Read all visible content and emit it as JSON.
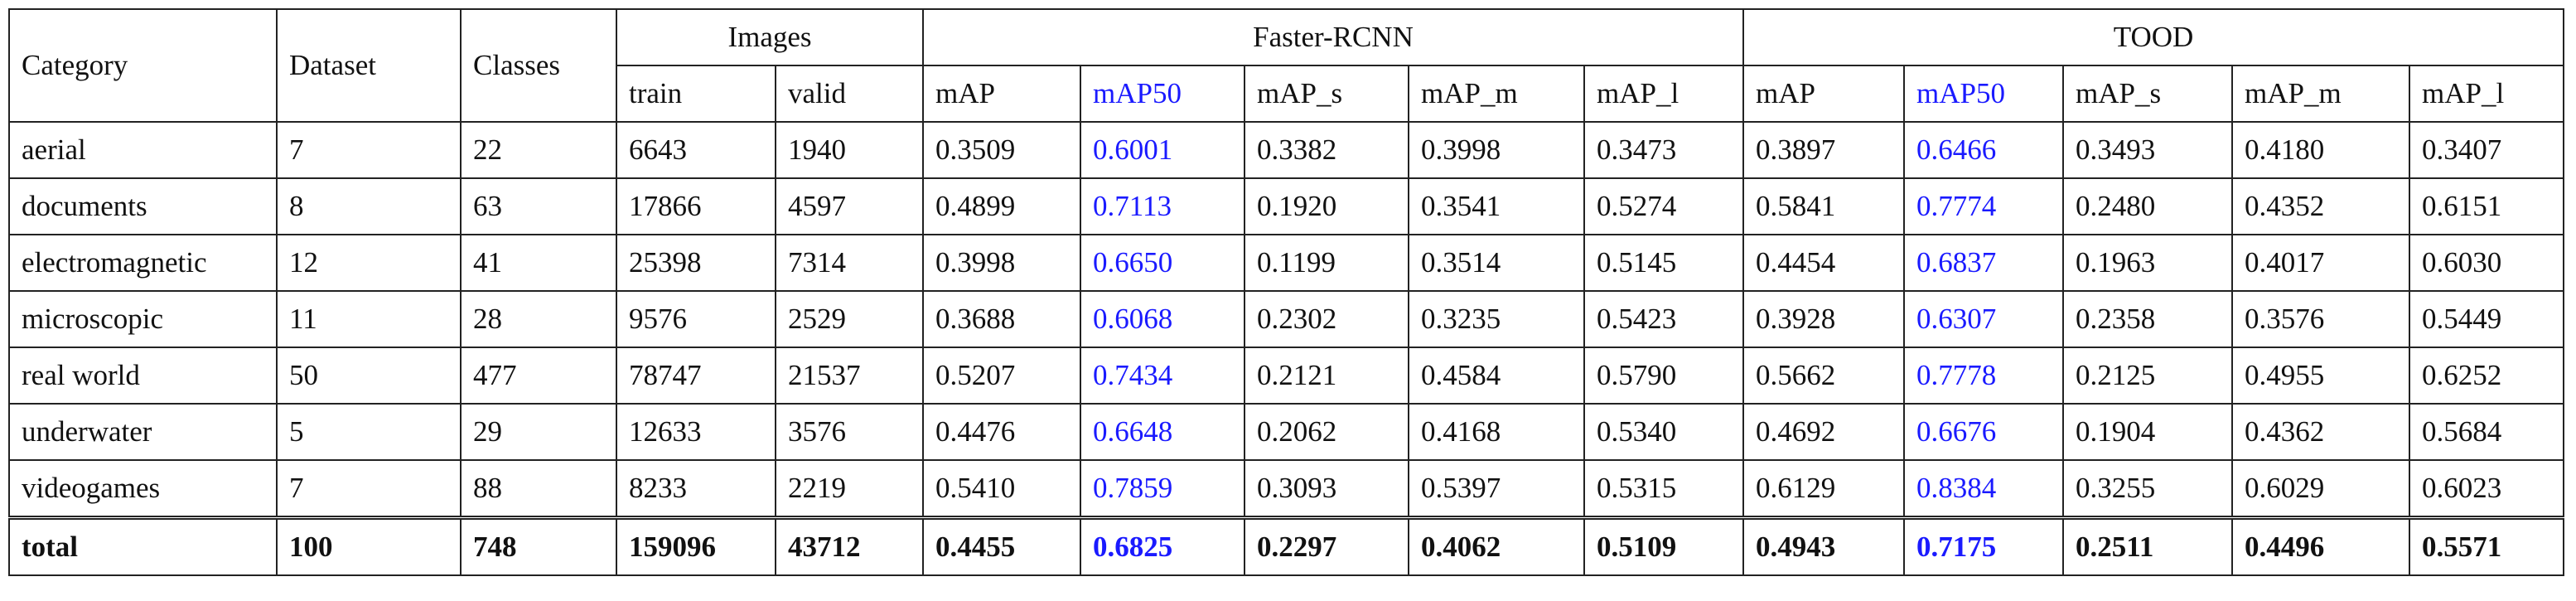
{
  "table": {
    "headers": {
      "category": "Category",
      "dataset": "Dataset",
      "classes": "Classes",
      "images": "Images",
      "train": "train",
      "valid": "valid",
      "groups": [
        "Faster-RCNN",
        "TOOD"
      ],
      "metrics": [
        "mAP",
        "mAP50",
        "mAP_s",
        "mAP_m",
        "mAP_l"
      ]
    },
    "rows": [
      [
        "aerial",
        "7",
        "22",
        "6643",
        "1940",
        "0.3509",
        "0.6001",
        "0.3382",
        "0.3998",
        "0.3473",
        "0.3897",
        "0.6466",
        "0.3493",
        "0.4180",
        "0.3407"
      ],
      [
        "documents",
        "8",
        "63",
        "17866",
        "4597",
        "0.4899",
        "0.7113",
        "0.1920",
        "0.3541",
        "0.5274",
        "0.5841",
        "0.7774",
        "0.2480",
        "0.4352",
        "0.6151"
      ],
      [
        "electromagnetic",
        "12",
        "41",
        "25398",
        "7314",
        "0.3998",
        "0.6650",
        "0.1199",
        "0.3514",
        "0.5145",
        "0.4454",
        "0.6837",
        "0.1963",
        "0.4017",
        "0.6030"
      ],
      [
        "microscopic",
        "11",
        "28",
        "9576",
        "2529",
        "0.3688",
        "0.6068",
        "0.2302",
        "0.3235",
        "0.5423",
        "0.3928",
        "0.6307",
        "0.2358",
        "0.3576",
        "0.5449"
      ],
      [
        "real world",
        "50",
        "477",
        "78747",
        "21537",
        "0.5207",
        "0.7434",
        "0.2121",
        "0.4584",
        "0.5790",
        "0.5662",
        "0.7778",
        "0.2125",
        "0.4955",
        "0.6252"
      ],
      [
        "underwater",
        "5",
        "29",
        "12633",
        "3576",
        "0.4476",
        "0.6648",
        "0.2062",
        "0.4168",
        "0.5340",
        "0.4692",
        "0.6676",
        "0.1904",
        "0.4362",
        "0.5684"
      ],
      [
        "videogames",
        "7",
        "88",
        "8233",
        "2219",
        "0.5410",
        "0.7859",
        "0.3093",
        "0.5397",
        "0.5315",
        "0.6129",
        "0.8384",
        "0.3255",
        "0.6029",
        "0.6023"
      ]
    ],
    "total": [
      "total",
      "100",
      "748",
      "159096",
      "43712",
      "0.4455",
      "0.6825",
      "0.2297",
      "0.4062",
      "0.5109",
      "0.4943",
      "0.7175",
      "0.2511",
      "0.4496",
      "0.5571"
    ]
  }
}
